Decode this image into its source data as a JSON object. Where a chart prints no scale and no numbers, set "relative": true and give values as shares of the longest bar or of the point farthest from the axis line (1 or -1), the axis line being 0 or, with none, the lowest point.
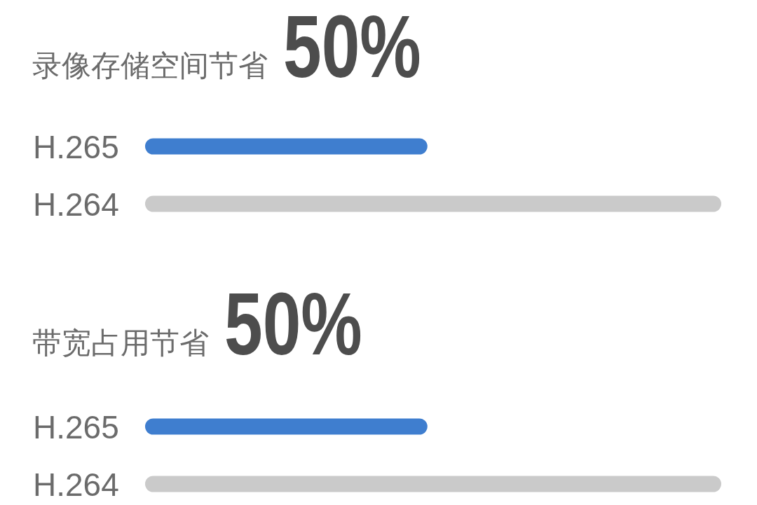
{
  "chart_data": [
    {
      "type": "bar",
      "orientation": "horizontal",
      "relative": true,
      "title": "录像存储空间节省",
      "subtitle": "50%",
      "categories": [
        "H.265",
        "H.264"
      ],
      "values": [
        0.49,
        1
      ],
      "colors": [
        "#3f7ecf",
        "#cacaca"
      ]
    },
    {
      "type": "bar",
      "orientation": "horizontal",
      "relative": true,
      "title": "带宽占用节省",
      "subtitle": "50%",
      "categories": [
        "H.265",
        "H.264"
      ],
      "values": [
        0.49,
        1
      ],
      "colors": [
        "#3f7ecf",
        "#cacaca"
      ]
    }
  ]
}
